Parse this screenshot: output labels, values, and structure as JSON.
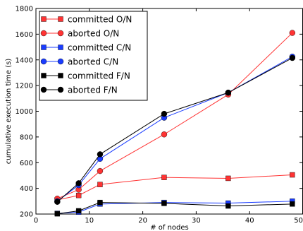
{
  "chart_data": {
    "type": "line",
    "title": "",
    "xlabel": "# of nodes",
    "ylabel": "cumulative execution time (s)",
    "xlim": [
      0,
      50
    ],
    "ylim": [
      200,
      1800
    ],
    "x_ticks": [
      0,
      10,
      20,
      30,
      40,
      50
    ],
    "y_ticks": [
      200,
      400,
      600,
      800,
      1000,
      1200,
      1400,
      1600,
      1800
    ],
    "grid": false,
    "legend_position": "top-left",
    "series": [
      {
        "name": "committed O/N",
        "color": "#ff3333",
        "line_color": "#ff3333",
        "marker": "square",
        "x": [
          4,
          8,
          12,
          24,
          36,
          48
        ],
        "y": [
          310,
          345,
          430,
          485,
          478,
          505
        ]
      },
      {
        "name": "aborted O/N",
        "color": "#ff3333",
        "line_color": "#ff3333",
        "marker": "circle",
        "x": [
          4,
          8,
          12,
          24,
          36,
          48
        ],
        "y": [
          320,
          390,
          535,
          820,
          1130,
          1610
        ]
      },
      {
        "name": "committed C/N",
        "color": "#1a3cff",
        "line_color": "#1a3cff",
        "marker": "square",
        "x": [
          4,
          8,
          12,
          24,
          36,
          48
        ],
        "y": [
          205,
          215,
          278,
          290,
          285,
          300
        ]
      },
      {
        "name": "aborted C/N",
        "color": "#1a3cff",
        "line_color": "#1a3cff",
        "marker": "circle",
        "x": [
          4,
          8,
          12,
          24,
          36,
          48
        ],
        "y": [
          300,
          425,
          630,
          950,
          1145,
          1425
        ]
      },
      {
        "name": "committed F/N",
        "color": "#000000",
        "line_color": "#000000",
        "marker": "square",
        "x": [
          4,
          8,
          12,
          24,
          36,
          48
        ],
        "y": [
          202,
          225,
          290,
          283,
          263,
          278
        ]
      },
      {
        "name": "aborted F/N",
        "color": "#000000",
        "line_color": "#000000",
        "marker": "circle",
        "x": [
          4,
          8,
          12,
          24,
          36,
          48
        ],
        "y": [
          295,
          440,
          665,
          980,
          1145,
          1415
        ]
      }
    ]
  }
}
